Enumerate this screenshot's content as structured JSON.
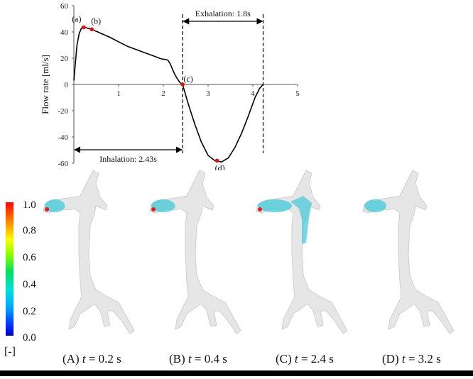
{
  "chart_data": {
    "type": "line",
    "ylabel": "Flow rate [ml/s]",
    "xlabel": "",
    "xlim": [
      0,
      5
    ],
    "ylim": [
      -60,
      60
    ],
    "xticks": [
      "1",
      "2",
      "3",
      "4",
      "5"
    ],
    "yticks": [
      "60",
      "40",
      "20",
      "0",
      "-20",
      "-40",
      "-60"
    ],
    "series": [
      {
        "x": [
          0.0,
          0.03,
          0.07,
          0.12,
          0.17,
          0.22,
          0.3,
          0.4,
          0.6,
          0.8,
          1.0,
          1.2,
          1.4,
          1.6,
          1.8,
          1.95,
          2.05,
          2.1,
          2.15,
          2.2,
          2.25,
          2.3,
          2.35,
          2.4,
          2.43,
          2.55,
          2.7,
          2.85,
          3.0,
          3.15,
          3.3,
          3.45,
          3.6,
          3.75,
          3.9,
          4.05,
          4.15,
          4.23
        ],
        "y": [
          3,
          15,
          30,
          39,
          43,
          43.5,
          43,
          42,
          39,
          36,
          32.5,
          29,
          26.5,
          24,
          21.5,
          19.5,
          19,
          18.5,
          16,
          12,
          8,
          5,
          2.5,
          0.5,
          0,
          -14,
          -30,
          -44,
          -54,
          -58,
          -59,
          -56,
          -48,
          -37,
          -24,
          -10,
          -3,
          0
        ]
      }
    ],
    "points": [
      {
        "label": "(a)",
        "x": 0.22,
        "y": 43.5
      },
      {
        "label": "(b)",
        "x": 0.4,
        "y": 42
      },
      {
        "label": "(c)",
        "x": 2.43,
        "y": 0
      },
      {
        "label": "(d)",
        "x": 3.2,
        "y": -58
      }
    ],
    "annotations": {
      "exhalation": "Exhalation: 1.8s",
      "inhalation": "Inhalation: 2.43s"
    },
    "exhalation_range": [
      2.43,
      4.23
    ],
    "inhalation_range": [
      0,
      2.43
    ]
  },
  "colorbar": {
    "labels": [
      "1.0",
      "0.8",
      "0.6",
      "0.4",
      "0.2",
      "0.0"
    ],
    "unit": "[-]"
  },
  "panels": [
    {
      "letter": "(A)",
      "var": "t",
      "rest": " = 0.2 s",
      "extent": 0.25
    },
    {
      "letter": "(B)",
      "var": "t",
      "rest": " = 0.4 s",
      "extent": 0.45
    },
    {
      "letter": "(C)",
      "var": "t",
      "rest": " = 2.4 s",
      "extent": 1.0
    },
    {
      "letter": "(D)",
      "var": "t",
      "rest": " = 3.2 s",
      "extent": 0.35
    }
  ],
  "colors": {
    "curve": "#000000",
    "point": "#e01010",
    "airway": "#e6e6e6",
    "airway_edge": "#cfcfcf",
    "particles": "#40c8d8"
  }
}
